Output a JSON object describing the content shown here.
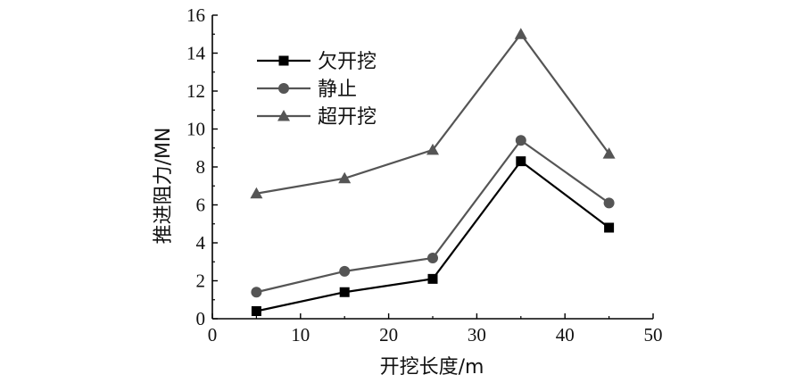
{
  "chart_data": {
    "type": "line",
    "title": "",
    "xlabel": "开挖长度/m",
    "ylabel": "推进阻力/MN",
    "xlim": [
      0,
      50
    ],
    "ylim": [
      0,
      16
    ],
    "x_ticks": [
      "0",
      "10",
      "20",
      "30",
      "40",
      "50"
    ],
    "y_ticks": [
      "0",
      "2",
      "4",
      "6",
      "8",
      "10",
      "12",
      "14",
      "16"
    ],
    "x_tick_values": [
      0,
      10,
      20,
      30,
      40,
      50
    ],
    "y_tick_values": [
      0,
      2,
      4,
      6,
      8,
      10,
      12,
      14,
      16
    ],
    "grid": false,
    "legend_position": "top-left",
    "x": [
      5,
      15,
      25,
      35,
      45
    ],
    "series": [
      {
        "name": "欠开挖",
        "marker": "square",
        "color": "#000000",
        "values": [
          0.4,
          1.4,
          2.1,
          8.3,
          4.8
        ]
      },
      {
        "name": "静止",
        "marker": "circle",
        "color": "#555555",
        "values": [
          1.4,
          2.5,
          3.2,
          9.4,
          6.1
        ]
      },
      {
        "name": "超开挖",
        "marker": "triangle",
        "color": "#555555",
        "values": [
          6.6,
          7.4,
          8.9,
          15.0,
          8.7
        ]
      }
    ]
  }
}
